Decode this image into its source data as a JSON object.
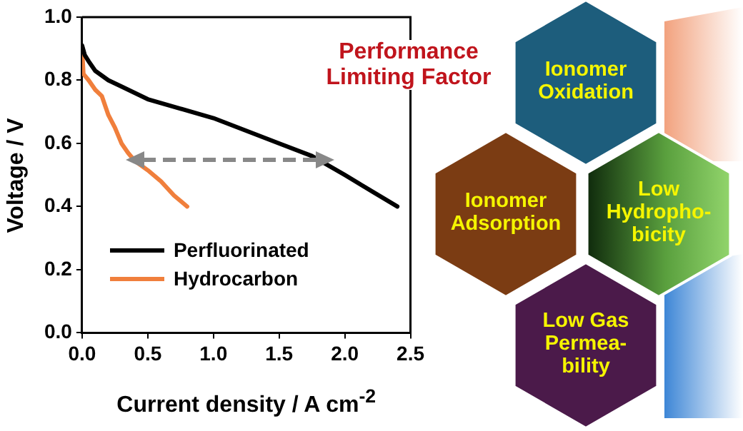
{
  "chart_data": {
    "type": "line",
    "xlabel": "Current density / A cm$^{-2}$",
    "ylabel": "Voltage / V",
    "xlim": [
      0,
      2.5
    ],
    "xticks": [
      {
        "value": 0,
        "label": "0.0"
      },
      {
        "value": 0.5,
        "label": "0.5"
      },
      {
        "value": 1,
        "label": "1.0"
      },
      {
        "value": 1.5,
        "label": "1.5"
      },
      {
        "value": 2,
        "label": "2.0"
      },
      {
        "value": 2.5,
        "label": "2.5"
      }
    ],
    "ylim": [
      0,
      1
    ],
    "yticks": [
      {
        "value": 0,
        "label": "0.0"
      },
      {
        "value": 0.2,
        "label": "0.2"
      },
      {
        "value": 0.4,
        "label": "0.4"
      },
      {
        "value": 0.6,
        "label": "0.6"
      },
      {
        "value": 0.8,
        "label": "0.8"
      },
      {
        "value": 1,
        "label": "1.0"
      }
    ],
    "grid": false,
    "legend": "bottom left",
    "marker": "none",
    "line_style": "solid",
    "series": [
      {
        "name": "Perfluorinated",
        "color": "#000000",
        "x": [
          0,
          0.02,
          0.05,
          0.1,
          0.2,
          0.3,
          0.5,
          0.75,
          1.0,
          1.25,
          1.5,
          1.75,
          2.0,
          2.2,
          2.4
        ],
        "values": [
          0.91,
          0.88,
          0.86,
          0.83,
          0.8,
          0.78,
          0.74,
          0.71,
          0.68,
          0.64,
          0.6,
          0.56,
          0.5,
          0.45,
          0.4
        ]
      },
      {
        "name": "Hydrocarbon",
        "color": "#f07f3c",
        "x": [
          0,
          0.01,
          0.05,
          0.1,
          0.15,
          0.2,
          0.25,
          0.3,
          0.35,
          0.4,
          0.5,
          0.6,
          0.7,
          0.8
        ],
        "values": [
          0.9,
          0.82,
          0.8,
          0.77,
          0.75,
          0.69,
          0.65,
          0.6,
          0.57,
          0.545,
          0.515,
          0.48,
          0.435,
          0.4
        ]
      }
    ],
    "annotations": [
      "Performance\nLimiting Factor",
      "Ionomer\nOxidation",
      "Ionomer\nAdsorption",
      "Low\nHydropho-\nbicity",
      "Low Gas\nPermea-\nbility"
    ]
  }
}
